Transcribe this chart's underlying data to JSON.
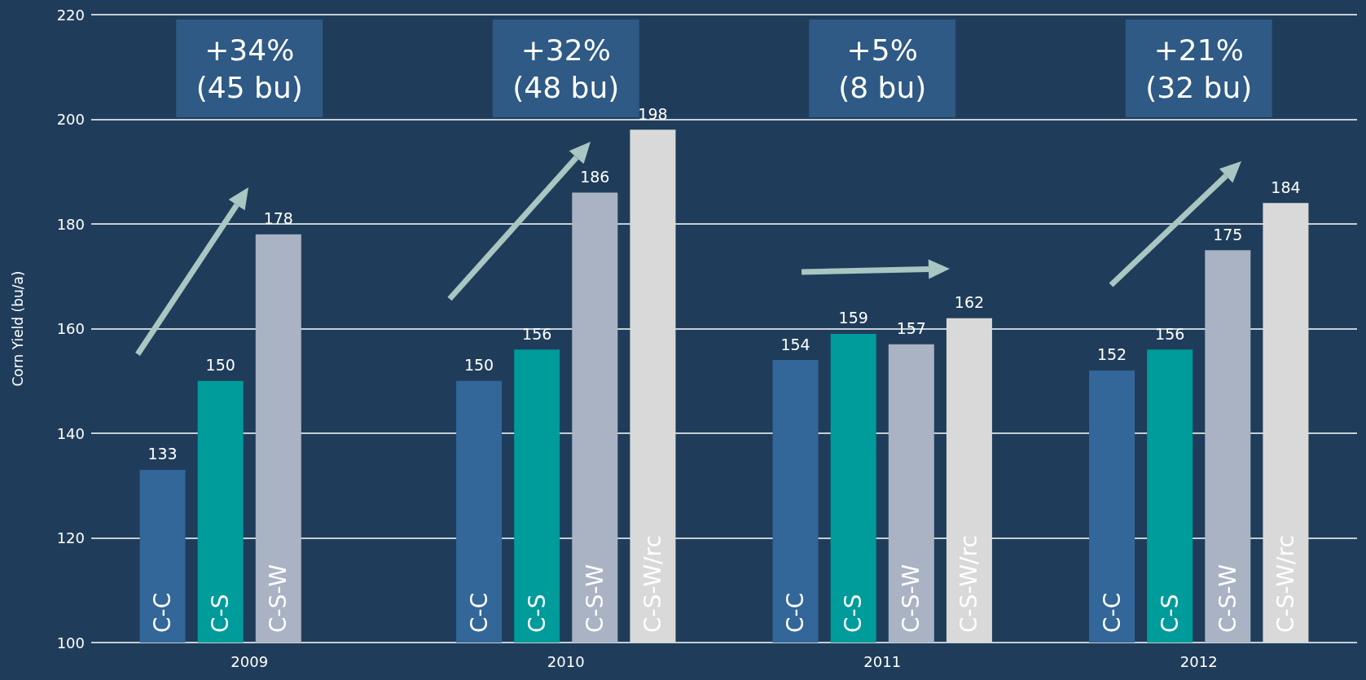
{
  "chart_data": {
    "type": "bar",
    "ylabel": "Corn Yield (bu/a)",
    "categories": [
      "2009",
      "2010",
      "2011",
      "2012"
    ],
    "series": [
      {
        "name": "C-C",
        "color": "#336699",
        "values": [
          133,
          150,
          154,
          152
        ]
      },
      {
        "name": "C-S",
        "color": "#009b9b",
        "values": [
          150,
          156,
          159,
          156
        ]
      },
      {
        "name": "C-S-W",
        "color": "#a9b3c3",
        "values": [
          178,
          186,
          157,
          175
        ]
      },
      {
        "name": "C-S-W/rc",
        "color": "#d9d9d9",
        "values": [
          null,
          198,
          162,
          184
        ]
      }
    ],
    "ylim": [
      100,
      220
    ],
    "yticks": [
      100,
      120,
      140,
      160,
      180,
      200,
      220
    ],
    "grid": "y",
    "data_labels": true,
    "annotations": [
      "+34%\n(45 bu)",
      "+32%\n(48 bu)",
      "+5%\n(8 bu)",
      "+21%\n(32 bu)"
    ]
  }
}
